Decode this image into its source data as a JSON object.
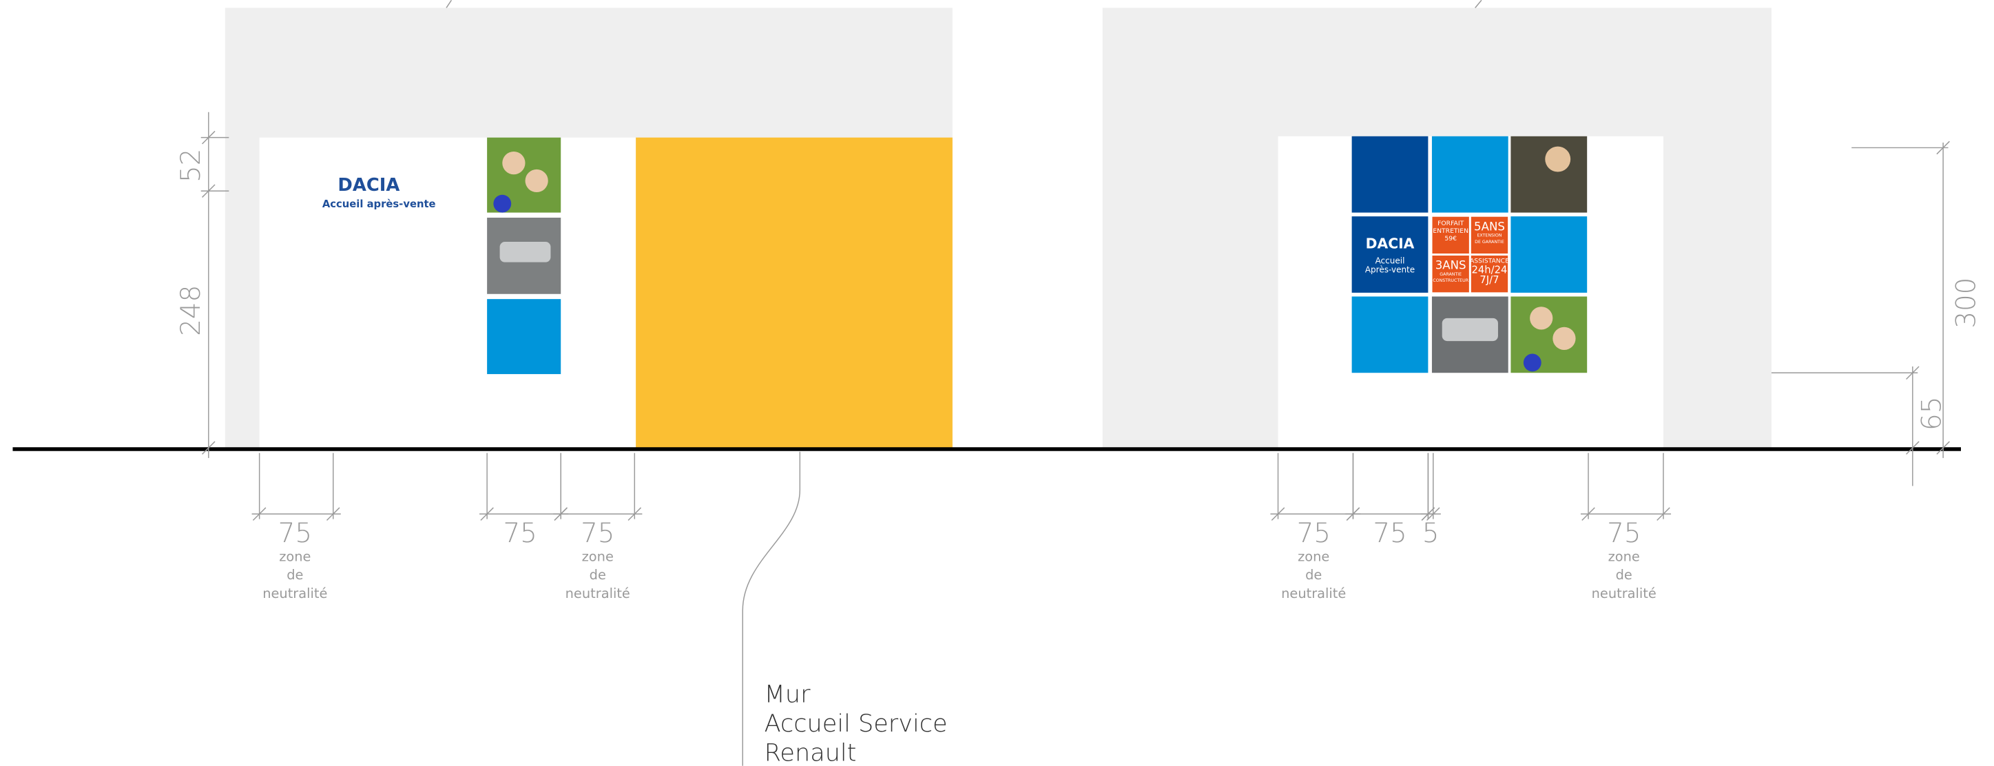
{
  "left_wall": {
    "logo": "DACIA",
    "tagline": "Accueil après-vente"
  },
  "right_wall": {
    "logo": "DACIA",
    "tagline_lines": [
      "Accueil",
      "Après-vente"
    ],
    "offers": [
      [
        "FORFAIT",
        "ENTRETIEN",
        "59€"
      ],
      [
        "5ANS",
        "EXTENSION",
        "DE GARANTIE"
      ],
      [
        "3ANS",
        "GARANTIE",
        "CONSTRUCTEUR"
      ],
      [
        "ASSISTANCE",
        "24h/24",
        "7J/7"
      ]
    ]
  },
  "dimensions": {
    "vertical": [
      "52",
      "248",
      "300",
      "65"
    ],
    "horizontal": [
      {
        "value": "75",
        "note": [
          "zone",
          "de",
          "neutralité"
        ]
      },
      {
        "value": "75"
      },
      {
        "value": "75",
        "note": [
          "zone",
          "de",
          "neutralité"
        ]
      },
      {
        "value": "75",
        "note": [
          "zone",
          "de",
          "neutralité"
        ]
      },
      {
        "value": "75"
      },
      {
        "value": "5"
      },
      {
        "value": "75",
        "note": [
          "zone",
          "de",
          "neutralité"
        ]
      }
    ]
  },
  "callout": [
    "Mur",
    "Accueil Service",
    "Renault"
  ]
}
